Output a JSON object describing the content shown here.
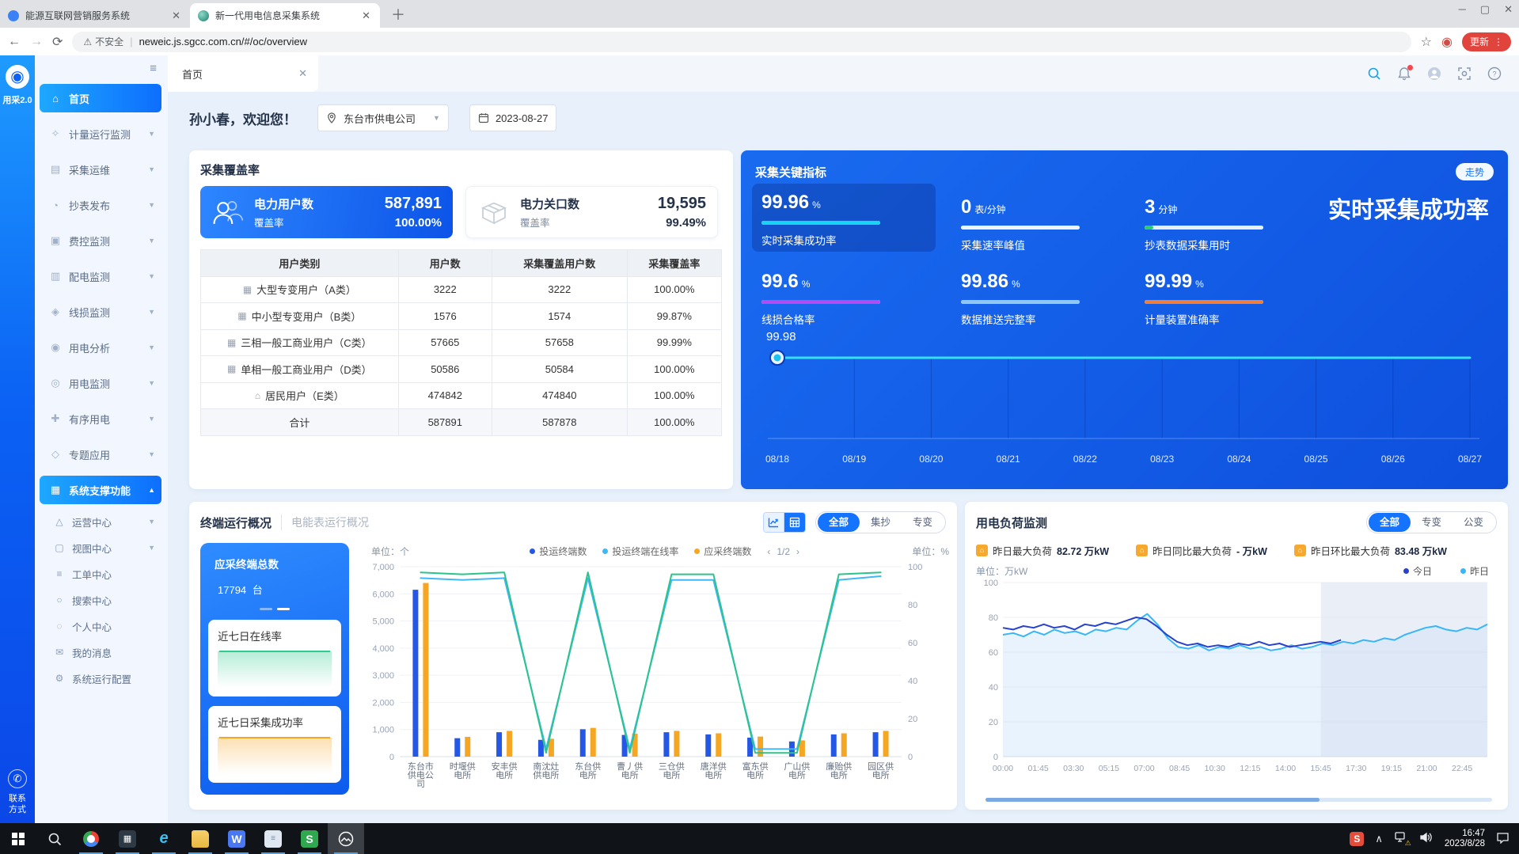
{
  "browser": {
    "tab1": "能源互联网营销服务系统",
    "tab2": "新一代用电信息采集系统",
    "security": "不安全",
    "url": "neweic.js.sgcc.com.cn/#/oc/overview",
    "update_label": "更新"
  },
  "sidebar": {
    "brand": "用采2.0",
    "contact_line1": "联系",
    "contact_line2": "方式",
    "items": [
      {
        "label": "首页",
        "icon": "home-icon",
        "active": true,
        "chevron": "none"
      },
      {
        "label": "计量运行监测",
        "icon": "metering-monitor-icon",
        "chevron": "down"
      },
      {
        "label": "采集运维",
        "icon": "collection-ops-icon",
        "chevron": "down"
      },
      {
        "label": "抄表发布",
        "icon": "meter-reading-icon",
        "chevron": "down"
      },
      {
        "label": "费控监测",
        "icon": "fee-control-icon",
        "chevron": "down"
      },
      {
        "label": "配电监测",
        "icon": "distribution-monitor-icon",
        "chevron": "down"
      },
      {
        "label": "线损监测",
        "icon": "line-loss-icon",
        "chevron": "down"
      },
      {
        "label": "用电分析",
        "icon": "power-analysis-icon",
        "chevron": "down"
      },
      {
        "label": "用电监测",
        "icon": "power-monitor-icon",
        "chevron": "down"
      },
      {
        "label": "有序用电",
        "icon": "orderly-power-icon",
        "chevron": "down"
      },
      {
        "label": "专题应用",
        "icon": "special-app-icon",
        "chevron": "down"
      },
      {
        "label": "系统支撑功能",
        "icon": "system-support-icon",
        "active": true,
        "chevron": "up"
      }
    ],
    "sub_items": [
      {
        "label": "运营中心",
        "icon": "operation-center-icon",
        "chevron": "down"
      },
      {
        "label": "视图中心",
        "icon": "view-center-icon",
        "chevron": "down"
      },
      {
        "label": "工单中心",
        "icon": "work-order-icon",
        "chevron": "none"
      },
      {
        "label": "搜索中心",
        "icon": "search-center-icon",
        "chevron": "none"
      },
      {
        "label": "个人中心",
        "icon": "personal-center-icon",
        "chevron": "none"
      },
      {
        "label": "我的消息",
        "icon": "my-messages-icon",
        "chevron": "none"
      },
      {
        "label": "系统运行配置",
        "icon": "system-config-icon",
        "chevron": "none"
      }
    ]
  },
  "topbar": {
    "page_tab": "首页"
  },
  "welcome": {
    "greeting": "孙小春，欢迎您！",
    "company": "东台市供电公司",
    "date": "2023-08-27"
  },
  "coverage": {
    "title": "采集覆盖率",
    "card1": {
      "label": "电力用户数",
      "value": "587,891",
      "sub_label": "覆盖率",
      "sub_value": "100.00%"
    },
    "card2": {
      "label": "电力关口数",
      "value": "19,595",
      "sub_label": "覆盖率",
      "sub_value": "99.49%"
    },
    "table": {
      "headers": [
        "用户类别",
        "用户数",
        "采集覆盖用户数",
        "采集覆盖率"
      ],
      "rows": [
        {
          "icon": "large-transformer-user-icon",
          "cells": [
            "大型专变用户（A类）",
            "3222",
            "3222",
            "100.00%"
          ]
        },
        {
          "icon": "mid-small-transformer-user-icon",
          "cells": [
            "中小型专变用户（B类）",
            "1576",
            "1574",
            "99.87%"
          ]
        },
        {
          "icon": "three-phase-user-icon",
          "cells": [
            "三相一般工商业用户（C类）",
            "57665",
            "57658",
            "99.99%"
          ]
        },
        {
          "icon": "single-phase-user-icon",
          "cells": [
            "单相一般工商业用户（D类）",
            "50586",
            "50584",
            "100.00%"
          ]
        },
        {
          "icon": "resident-user-icon",
          "cells": [
            "居民用户（E类）",
            "474842",
            "474840",
            "100.00%"
          ]
        },
        {
          "icon": "",
          "cells": [
            "合计",
            "587891",
            "587878",
            "100.00%"
          ]
        }
      ]
    }
  },
  "indicators": {
    "title": "采集关键指标",
    "trend_button": "走势",
    "big_title": "实时采集成功率",
    "metrics": [
      {
        "value": "99.96",
        "unit": "%",
        "label": "实时采集成功率",
        "color": "#19d3f2",
        "fill_pct": 100,
        "tip_pct": 0,
        "tip_color": "",
        "highlight": true
      },
      {
        "value": "0",
        "unit": "表/分钟",
        "label": "采集速率峰值",
        "color": "#eef3f8",
        "fill_pct": 100,
        "tip_pct": 0,
        "tip_color": ""
      },
      {
        "value": "3",
        "unit": "分钟",
        "label": "抄表数据采集用时",
        "color": "#e8eef6",
        "fill_pct": 100,
        "tip_pct": 7,
        "tip_color": "#2ecc71"
      },
      {
        "value": "99.6",
        "unit": "%",
        "label": "线损合格率",
        "color": "#b14cf2",
        "fill_pct": 100,
        "tip_pct": 0,
        "tip_color": ""
      },
      {
        "value": "99.86",
        "unit": "%",
        "label": "数据推送完整率",
        "color": "#8fc7f5",
        "fill_pct": 100,
        "tip_pct": 0,
        "tip_color": ""
      },
      {
        "value": "99.99",
        "unit": "%",
        "label": "计量装置准确率",
        "color": "#ef7e3a",
        "fill_pct": 100,
        "tip_pct": 0,
        "tip_color": ""
      }
    ],
    "chart_data": {
      "type": "line",
      "marker_label": "99.98",
      "x": [
        "08/18",
        "08/19",
        "08/20",
        "08/21",
        "08/22",
        "08/23",
        "08/24",
        "08/25",
        "08/26",
        "08/27"
      ],
      "values": [
        99.98,
        99.98,
        99.98,
        99.98,
        99.98,
        99.98,
        99.98,
        99.98,
        99.98,
        99.98
      ],
      "line_color": "#35e0f2",
      "ylim": [
        99.9,
        100
      ]
    }
  },
  "terminal": {
    "title": "终端运行概况",
    "subtitle": "电能表运行概况",
    "filters": [
      "全部",
      "集抄",
      "专变"
    ],
    "active_filter": "全部",
    "total_label": "应采终端总数",
    "total_value": "17794",
    "total_unit": "台",
    "spark1_label": "近七日在线率",
    "spark1_color": "#2ecc8f",
    "spark2_label": "近七日采集成功率",
    "spark2_color": "#f5a623",
    "unit_left": "单位：个",
    "unit_right": "单位：%",
    "pagination": "1/2",
    "legend": [
      {
        "label": "投运终端数",
        "color": "#2457e6"
      },
      {
        "label": "投运终端在线率",
        "color": "#41b7f8"
      },
      {
        "label": "应采终端数",
        "color": "#f5a623"
      }
    ],
    "chart_data": {
      "type": "bar+line",
      "categories": [
        "东台市供电公司",
        "时堰供电所",
        "安丰供电所",
        "南沈灶供电所",
        "东台供电所",
        "曹丿供电所",
        "三仓供电所",
        "唐洋供电所",
        "富东供电所",
        "广山供电所",
        "廉贻供电所",
        "园区供电所"
      ],
      "series": [
        {
          "name": "投运终端数",
          "type": "bar",
          "color": "#2457e6",
          "axis": "left",
          "values": [
            6150,
            680,
            900,
            620,
            1010,
            800,
            900,
            820,
            700,
            560,
            820,
            900
          ]
        },
        {
          "name": "应采终端数",
          "type": "bar",
          "color": "#f5a623",
          "axis": "left",
          "values": [
            6400,
            730,
            950,
            660,
            1060,
            850,
            950,
            860,
            740,
            600,
            860,
            950
          ]
        },
        {
          "name": "投运终端在线率",
          "type": "line",
          "color": "#41b7f8",
          "axis": "right",
          "values": [
            94,
            93,
            94,
            4,
            94,
            4,
            93,
            93,
            4,
            4,
            93,
            95
          ]
        },
        {
          "name": "green-line",
          "type": "line",
          "color": "#2bc48a",
          "axis": "right",
          "values": [
            97,
            96,
            97,
            2,
            97,
            2,
            96,
            96,
            2,
            2,
            96,
            97
          ]
        }
      ],
      "y_left": {
        "min": 0,
        "max": 7000,
        "step": 1000
      },
      "y_right": {
        "min": 0,
        "max": 100,
        "step": 20
      }
    }
  },
  "load": {
    "title": "用电负荷监测",
    "filters": [
      "全部",
      "专变",
      "公变"
    ],
    "active_filter": "全部",
    "stats": [
      {
        "icon": "yesterday-max-load-icon",
        "label": "昨日最大负荷",
        "value": "82.72 万kW"
      },
      {
        "icon": "yoy-max-load-icon",
        "label": "昨日同比最大负荷",
        "value": "- 万kW"
      },
      {
        "icon": "mom-max-load-icon",
        "label": "昨日环比最大负荷",
        "value": "83.48 万kW"
      }
    ],
    "unit": "单位：万kW",
    "legend": [
      {
        "label": "今日",
        "color": "#2742cc"
      },
      {
        "label": "昨日",
        "color": "#38b6f7"
      }
    ],
    "chart_data": {
      "type": "line",
      "x_ticks": [
        "00:00",
        "01:45",
        "03:30",
        "05:15",
        "07:00",
        "08:45",
        "10:30",
        "12:15",
        "14:00",
        "15:45",
        "17:30",
        "19:15",
        "21:00",
        "22:45"
      ],
      "ylim": [
        0,
        100
      ],
      "y_step": 20,
      "selection_start_min": 945,
      "series": [
        {
          "name": "今日",
          "color": "#2742cc",
          "end_min": 1005,
          "values": [
            74,
            73,
            75,
            74,
            76,
            74,
            75,
            73,
            76,
            75,
            77,
            76,
            78,
            80,
            79,
            75,
            70,
            66,
            64,
            65,
            63,
            64,
            63,
            65,
            64,
            66,
            64,
            65,
            63,
            64,
            65,
            66,
            65,
            67
          ]
        },
        {
          "name": "昨日",
          "color": "#38b6f7",
          "end_min": 1440,
          "values": [
            70,
            71,
            69,
            72,
            70,
            73,
            71,
            72,
            70,
            73,
            72,
            74,
            73,
            78,
            82,
            76,
            68,
            63,
            62,
            64,
            61,
            63,
            62,
            64,
            62,
            63,
            61,
            62,
            64,
            62,
            63,
            65,
            64,
            66,
            65,
            67,
            66,
            68,
            67,
            70,
            72,
            74,
            75,
            73,
            72,
            74,
            73,
            76
          ]
        }
      ]
    }
  },
  "taskbar": {
    "time": "16:47",
    "date": "2023/8/28"
  }
}
